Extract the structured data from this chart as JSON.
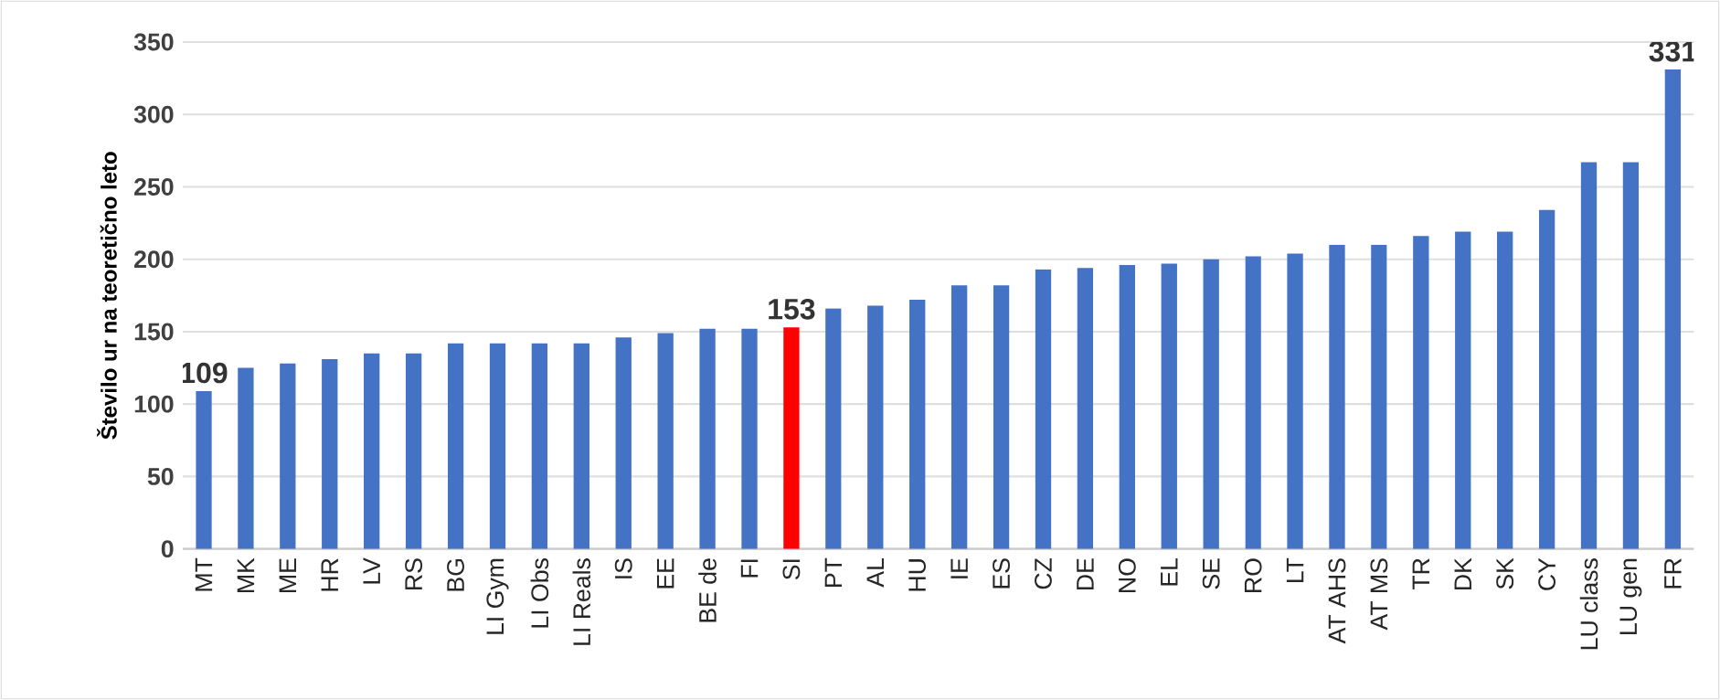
{
  "chart_data": {
    "type": "bar",
    "ylabel": "Število ur na teoretično leto",
    "categories": [
      "MT",
      "MK",
      "ME",
      "HR",
      "LV",
      "RS",
      "BG",
      "LI Gym",
      "LI Obs",
      "LI Reals",
      "IS",
      "EE",
      "BE de",
      "FI",
      "SI",
      "PT",
      "AL",
      "HU",
      "IE",
      "ES",
      "CZ",
      "DE",
      "NO",
      "EL",
      "SE",
      "RO",
      "LT",
      "AT AHS",
      "AT MS",
      "TR",
      "DK",
      "SK",
      "CY",
      "LU class",
      "LU gen",
      "FR"
    ],
    "values": [
      109,
      125,
      128,
      131,
      135,
      135,
      142,
      142,
      142,
      142,
      146,
      149,
      152,
      152,
      153,
      166,
      168,
      172,
      182,
      182,
      193,
      194,
      196,
      197,
      200,
      202,
      204,
      210,
      210,
      216,
      219,
      219,
      234,
      267,
      267,
      331
    ],
    "value_labels": [
      "109",
      null,
      null,
      null,
      null,
      null,
      null,
      null,
      null,
      null,
      null,
      null,
      null,
      null,
      "153",
      null,
      null,
      null,
      null,
      null,
      null,
      null,
      null,
      null,
      null,
      null,
      null,
      null,
      null,
      null,
      null,
      null,
      null,
      null,
      null,
      "331"
    ],
    "colors": [
      "#4472c4",
      "#4472c4",
      "#4472c4",
      "#4472c4",
      "#4472c4",
      "#4472c4",
      "#4472c4",
      "#4472c4",
      "#4472c4",
      "#4472c4",
      "#4472c4",
      "#4472c4",
      "#4472c4",
      "#4472c4",
      "#ff0000",
      "#4472c4",
      "#4472c4",
      "#4472c4",
      "#4472c4",
      "#4472c4",
      "#4472c4",
      "#4472c4",
      "#4472c4",
      "#4472c4",
      "#4472c4",
      "#4472c4",
      "#4472c4",
      "#4472c4",
      "#4472c4",
      "#4472c4",
      "#4472c4",
      "#4472c4",
      "#4472c4",
      "#4472c4",
      "#4472c4",
      "#4472c4"
    ],
    "ylim": [
      0,
      350
    ],
    "yticks": [
      0,
      50,
      100,
      150,
      200,
      250,
      300,
      350
    ],
    "grid": "y"
  }
}
